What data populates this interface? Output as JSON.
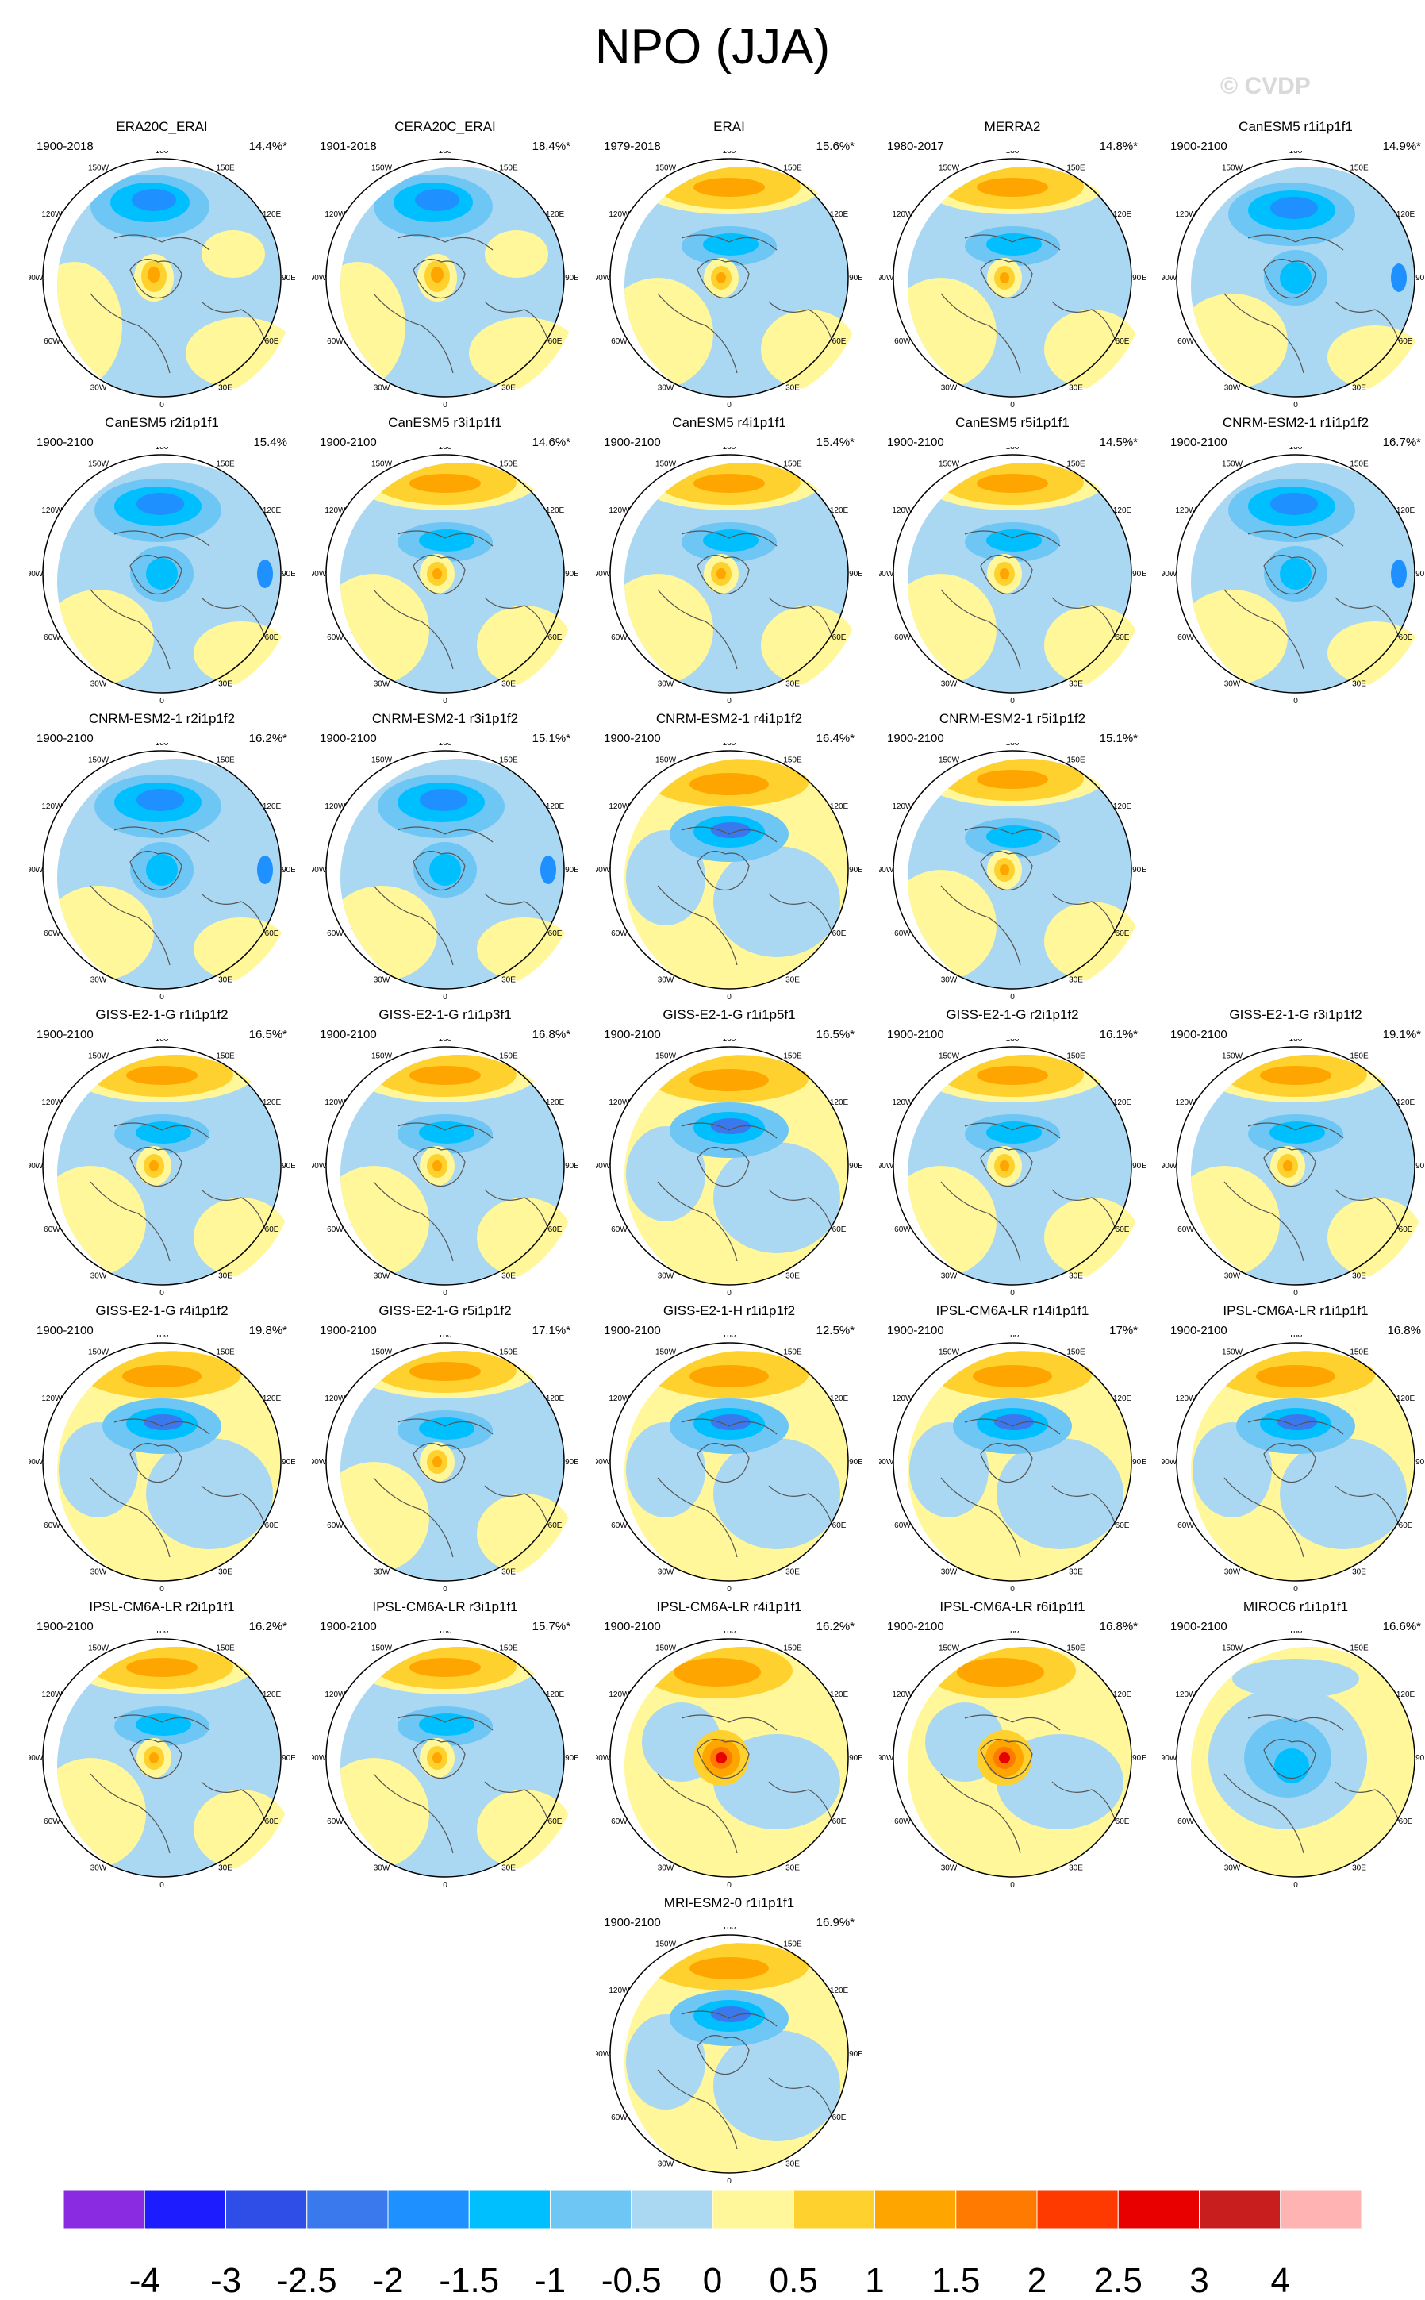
{
  "title": "NPO (JJA)",
  "watermark": "© CVDP",
  "chart_data": {
    "type": "heatmap",
    "title": "NPO (JJA)",
    "projection": "north polar stereographic",
    "longitude_labels": [
      "180",
      "150W",
      "120W",
      "90W",
      "60W",
      "30W",
      "0",
      "30E",
      "60E",
      "90E",
      "120E",
      "150E"
    ],
    "colorbar": {
      "ticks": [
        "-4",
        "-3",
        "-2.5",
        "-2",
        "-1.5",
        "-1",
        "-0.5",
        "0",
        "0.5",
        "1",
        "1.5",
        "2",
        "2.5",
        "3",
        "4"
      ],
      "colors": [
        "#8a2be2",
        "#1c1cff",
        "#2f4ee8",
        "#3a78ee",
        "#1e90ff",
        "#00bfff",
        "#6ec6f5",
        "#aad8f2",
        "#fff799",
        "#ffd12e",
        "#ffa500",
        "#ff7a00",
        "#ff3a00",
        "#e80000",
        "#c81e1e",
        "#ffb3b3"
      ]
    },
    "panels": [
      {
        "name": "ERA20C_ERAI",
        "period": "1900-2018",
        "pct": "14.4%*",
        "pattern": "A"
      },
      {
        "name": "CERA20C_ERAI",
        "period": "1901-2018",
        "pct": "18.4%*",
        "pattern": "A"
      },
      {
        "name": "ERAI",
        "period": "1979-2018",
        "pct": "15.6%*",
        "pattern": "C"
      },
      {
        "name": "MERRA2",
        "period": "1980-2017",
        "pct": "14.8%*",
        "pattern": "C"
      },
      {
        "name": "CanESM5 r1i1p1f1",
        "period": "1900-2100",
        "pct": "14.9%*",
        "pattern": "B"
      },
      {
        "name": "CanESM5 r2i1p1f1",
        "period": "1900-2100",
        "pct": "15.4%",
        "pattern": "B"
      },
      {
        "name": "CanESM5 r3i1p1f1",
        "period": "1900-2100",
        "pct": "14.6%*",
        "pattern": "C"
      },
      {
        "name": "CanESM5 r4i1p1f1",
        "period": "1900-2100",
        "pct": "15.4%*",
        "pattern": "C"
      },
      {
        "name": "CanESM5 r5i1p1f1",
        "period": "1900-2100",
        "pct": "14.5%*",
        "pattern": "C"
      },
      {
        "name": "CNRM-ESM2-1 r1i1p1f2",
        "period": "1900-2100",
        "pct": "16.7%*",
        "pattern": "B"
      },
      {
        "name": "CNRM-ESM2-1 r2i1p1f2",
        "period": "1900-2100",
        "pct": "16.2%*",
        "pattern": "B"
      },
      {
        "name": "CNRM-ESM2-1 r3i1p1f2",
        "period": "1900-2100",
        "pct": "15.1%*",
        "pattern": "B"
      },
      {
        "name": "CNRM-ESM2-1 r4i1p1f2",
        "period": "1900-2100",
        "pct": "16.4%*",
        "pattern": "D"
      },
      {
        "name": "CNRM-ESM2-1 r5i1p1f2",
        "period": "1900-2100",
        "pct": "15.1%*",
        "pattern": "C"
      },
      {
        "name": "GISS-E2-1-G r1i1p1f2",
        "period": "1900-2100",
        "pct": "16.5%*",
        "pattern": "C"
      },
      {
        "name": "GISS-E2-1-G r1i1p3f1",
        "period": "1900-2100",
        "pct": "16.8%*",
        "pattern": "C"
      },
      {
        "name": "GISS-E2-1-G r1i1p5f1",
        "period": "1900-2100",
        "pct": "16.5%*",
        "pattern": "D"
      },
      {
        "name": "GISS-E2-1-G r2i1p1f2",
        "period": "1900-2100",
        "pct": "16.1%*",
        "pattern": "C"
      },
      {
        "name": "GISS-E2-1-G r3i1p1f2",
        "period": "1900-2100",
        "pct": "19.1%*",
        "pattern": "C"
      },
      {
        "name": "GISS-E2-1-G r4i1p1f2",
        "period": "1900-2100",
        "pct": "19.8%*",
        "pattern": "D"
      },
      {
        "name": "GISS-E2-1-G r5i1p1f2",
        "period": "1900-2100",
        "pct": "17.1%*",
        "pattern": "C"
      },
      {
        "name": "GISS-E2-1-H r1i1p1f2",
        "period": "1900-2100",
        "pct": "12.5%*",
        "pattern": "D"
      },
      {
        "name": "IPSL-CM6A-LR r14i1p1f1",
        "period": "1900-2100",
        "pct": "17%*",
        "pattern": "D"
      },
      {
        "name": "IPSL-CM6A-LR r1i1p1f1",
        "period": "1900-2100",
        "pct": "16.8%",
        "pattern": "D"
      },
      {
        "name": "IPSL-CM6A-LR r2i1p1f1",
        "period": "1900-2100",
        "pct": "16.2%*",
        "pattern": "C"
      },
      {
        "name": "IPSL-CM6A-LR r3i1p1f1",
        "period": "1900-2100",
        "pct": "15.7%*",
        "pattern": "C"
      },
      {
        "name": "IPSL-CM6A-LR r4i1p1f1",
        "period": "1900-2100",
        "pct": "16.2%*",
        "pattern": "E"
      },
      {
        "name": "IPSL-CM6A-LR r6i1p1f1",
        "period": "1900-2100",
        "pct": "16.8%*",
        "pattern": "E"
      },
      {
        "name": "MIROC6 r1i1p1f1",
        "period": "1900-2100",
        "pct": "16.6%*",
        "pattern": "F"
      },
      {
        "name": "MRI-ESM2-0 r1i1p1f1",
        "period": "1900-2100",
        "pct": "16.9%*",
        "pattern": "D"
      }
    ]
  }
}
